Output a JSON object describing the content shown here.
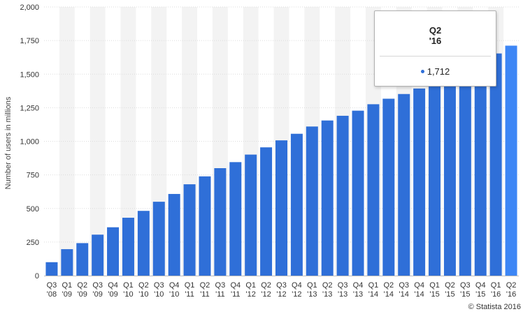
{
  "chart_data": {
    "type": "bar",
    "title": "",
    "xlabel": "",
    "ylabel": "Number of users in millions",
    "ylim": [
      0,
      2000
    ],
    "yticks": [
      "0",
      "250",
      "500",
      "750",
      "1,000",
      "1,250",
      "1,500",
      "1,750",
      "2,000"
    ],
    "ytick_values": [
      0,
      250,
      500,
      750,
      1000,
      1250,
      1500,
      1750,
      2000
    ],
    "grid": true,
    "categories": [
      [
        "Q3",
        "'08"
      ],
      [
        "Q1",
        "'09"
      ],
      [
        "Q2",
        "'09"
      ],
      [
        "Q3",
        "'09"
      ],
      [
        "Q4",
        "'09"
      ],
      [
        "Q1",
        "'10"
      ],
      [
        "Q2",
        "'10"
      ],
      [
        "Q3",
        "'10"
      ],
      [
        "Q4",
        "'10"
      ],
      [
        "Q1",
        "'11"
      ],
      [
        "Q2",
        "'11"
      ],
      [
        "Q3",
        "'11"
      ],
      [
        "Q4",
        "'11"
      ],
      [
        "Q1",
        "'12"
      ],
      [
        "Q2",
        "'12"
      ],
      [
        "Q3",
        "'12"
      ],
      [
        "Q4",
        "'12"
      ],
      [
        "Q1",
        "'13"
      ],
      [
        "Q2",
        "'13"
      ],
      [
        "Q3",
        "'13"
      ],
      [
        "Q4",
        "'13"
      ],
      [
        "Q1",
        "'14"
      ],
      [
        "Q2",
        "'14"
      ],
      [
        "Q3",
        "'14"
      ],
      [
        "Q4",
        "'14"
      ],
      [
        "Q1",
        "'15"
      ],
      [
        "Q2",
        "'15"
      ],
      [
        "Q3",
        "'15"
      ],
      [
        "Q4",
        "'15"
      ],
      [
        "Q1",
        "'16"
      ],
      [
        "Q2",
        "'16"
      ]
    ],
    "values": [
      100,
      197,
      242,
      305,
      360,
      431,
      482,
      550,
      608,
      680,
      739,
      800,
      845,
      901,
      955,
      1007,
      1056,
      1110,
      1155,
      1190,
      1228,
      1276,
      1317,
      1352,
      1393,
      1440,
      1490,
      1545,
      1591,
      1654,
      1712
    ],
    "series_color": "#2f6fd8",
    "highlight_color": "#3d86f5",
    "highlight_index": 30
  },
  "tooltip": {
    "title_line1": "Q2",
    "title_line2": "'16",
    "value": "1,712"
  },
  "credit": "© Statista 2016"
}
